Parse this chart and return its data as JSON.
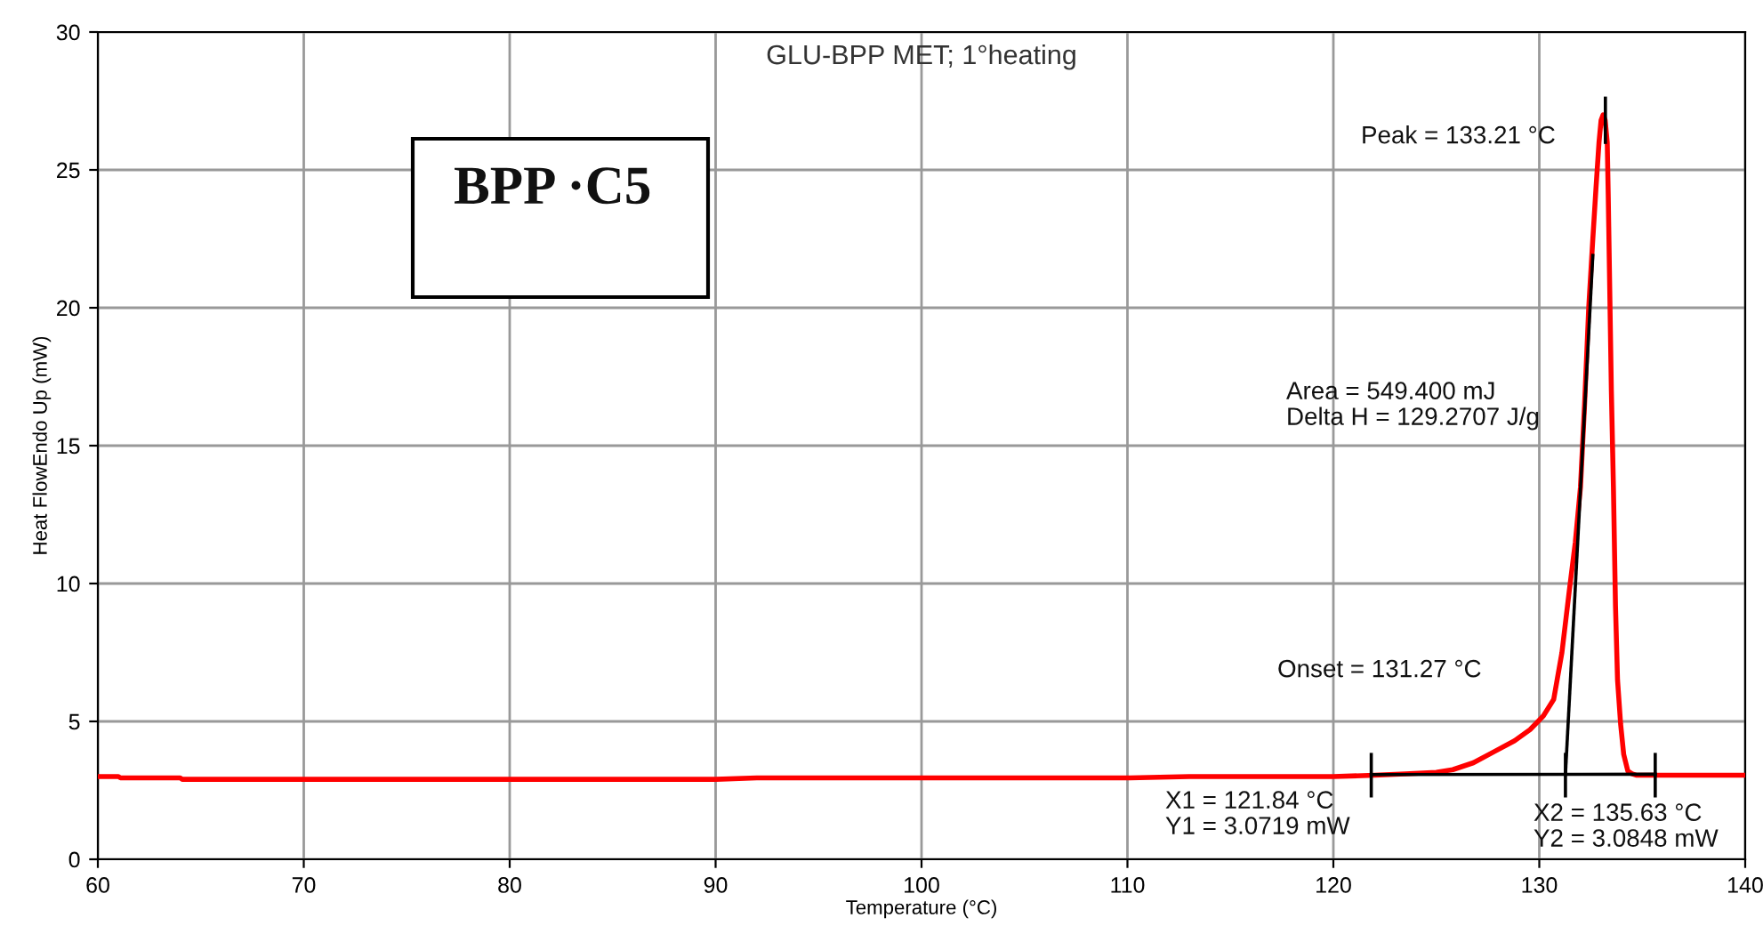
{
  "chart_data": {
    "type": "line",
    "title": "GLU-BPP MET; 1°heating",
    "xlabel": "Temperature (°C)",
    "ylabel": "Heat FlowEndo Up (mW)",
    "series": [
      {
        "color": "#ff0000",
        "x": [
          60,
          61,
          61.1,
          64,
          64.1,
          70,
          80,
          90,
          92,
          100,
          110,
          113,
          115,
          120,
          122,
          123.5,
          125,
          125.8,
          126.8,
          127.8,
          128.8,
          129.55,
          130.2,
          130.7,
          131.1,
          131.45,
          131.75,
          132.0,
          132.2,
          132.4,
          132.6,
          132.75,
          132.9,
          133.0,
          133.1,
          133.2,
          133.3,
          133.35,
          133.5,
          133.6,
          133.7,
          133.8,
          133.95,
          134.1,
          134.3,
          134.5,
          134.7,
          135,
          136,
          140
        ],
        "values": [
          3.0,
          3.0,
          2.95,
          2.95,
          2.9,
          2.9,
          2.9,
          2.9,
          2.95,
          2.95,
          2.95,
          3.0,
          3.0,
          3.0,
          3.05,
          3.1,
          3.15,
          3.25,
          3.5,
          3.9,
          4.3,
          4.7,
          5.2,
          5.8,
          7.5,
          9.7,
          11.5,
          13.5,
          16.5,
          20,
          22.5,
          24.3,
          26.0,
          26.8,
          27.0,
          26.8,
          26.0,
          24.0,
          17,
          13.5,
          9.2,
          6.5,
          4.9,
          3.8,
          3.2,
          3.1,
          3.05,
          3.05,
          3.05,
          3.05
        ]
      },
      {
        "color": "#000000",
        "x": [
          121.84,
          135.63
        ],
        "values": [
          3.0719,
          3.0848
        ]
      },
      {
        "color": "#000000",
        "x": [
          131.27,
          132.6
        ],
        "values": [
          3.08,
          21.9
        ]
      },
      {
        "color": "#000000",
        "x": [
          121.84,
          121.84
        ],
        "values": [
          2.3,
          3.8
        ]
      },
      {
        "color": "#000000",
        "x": [
          131.27,
          131.27
        ],
        "values": [
          2.3,
          3.8
        ]
      },
      {
        "color": "#000000",
        "x": [
          135.63,
          135.63
        ],
        "values": [
          2.3,
          3.8
        ]
      },
      {
        "color": "#000000",
        "x": [
          133.21,
          133.21
        ],
        "values": [
          26.0,
          27.6
        ]
      }
    ],
    "annotations": [
      "BPP ·C5",
      "Peak = 133.21 °C",
      "Area = 549.400 mJ\nDelta H = 129.2707 J/g",
      "Onset = 131.27 °C",
      "X1 = 121.84 °C\nY1 = 3.0719 mW",
      "X2 = 135.63 °C\nY2 = 3.0848 mW"
    ],
    "xlim": [
      60,
      140
    ],
    "xticks": [
      60,
      70,
      80,
      90,
      100,
      110,
      120,
      130,
      140
    ],
    "ylim": [
      0,
      30
    ],
    "yticks": [
      0,
      5,
      10,
      15,
      20,
      25,
      30
    ],
    "grid": true,
    "line_style": "solid",
    "marker": "none"
  }
}
